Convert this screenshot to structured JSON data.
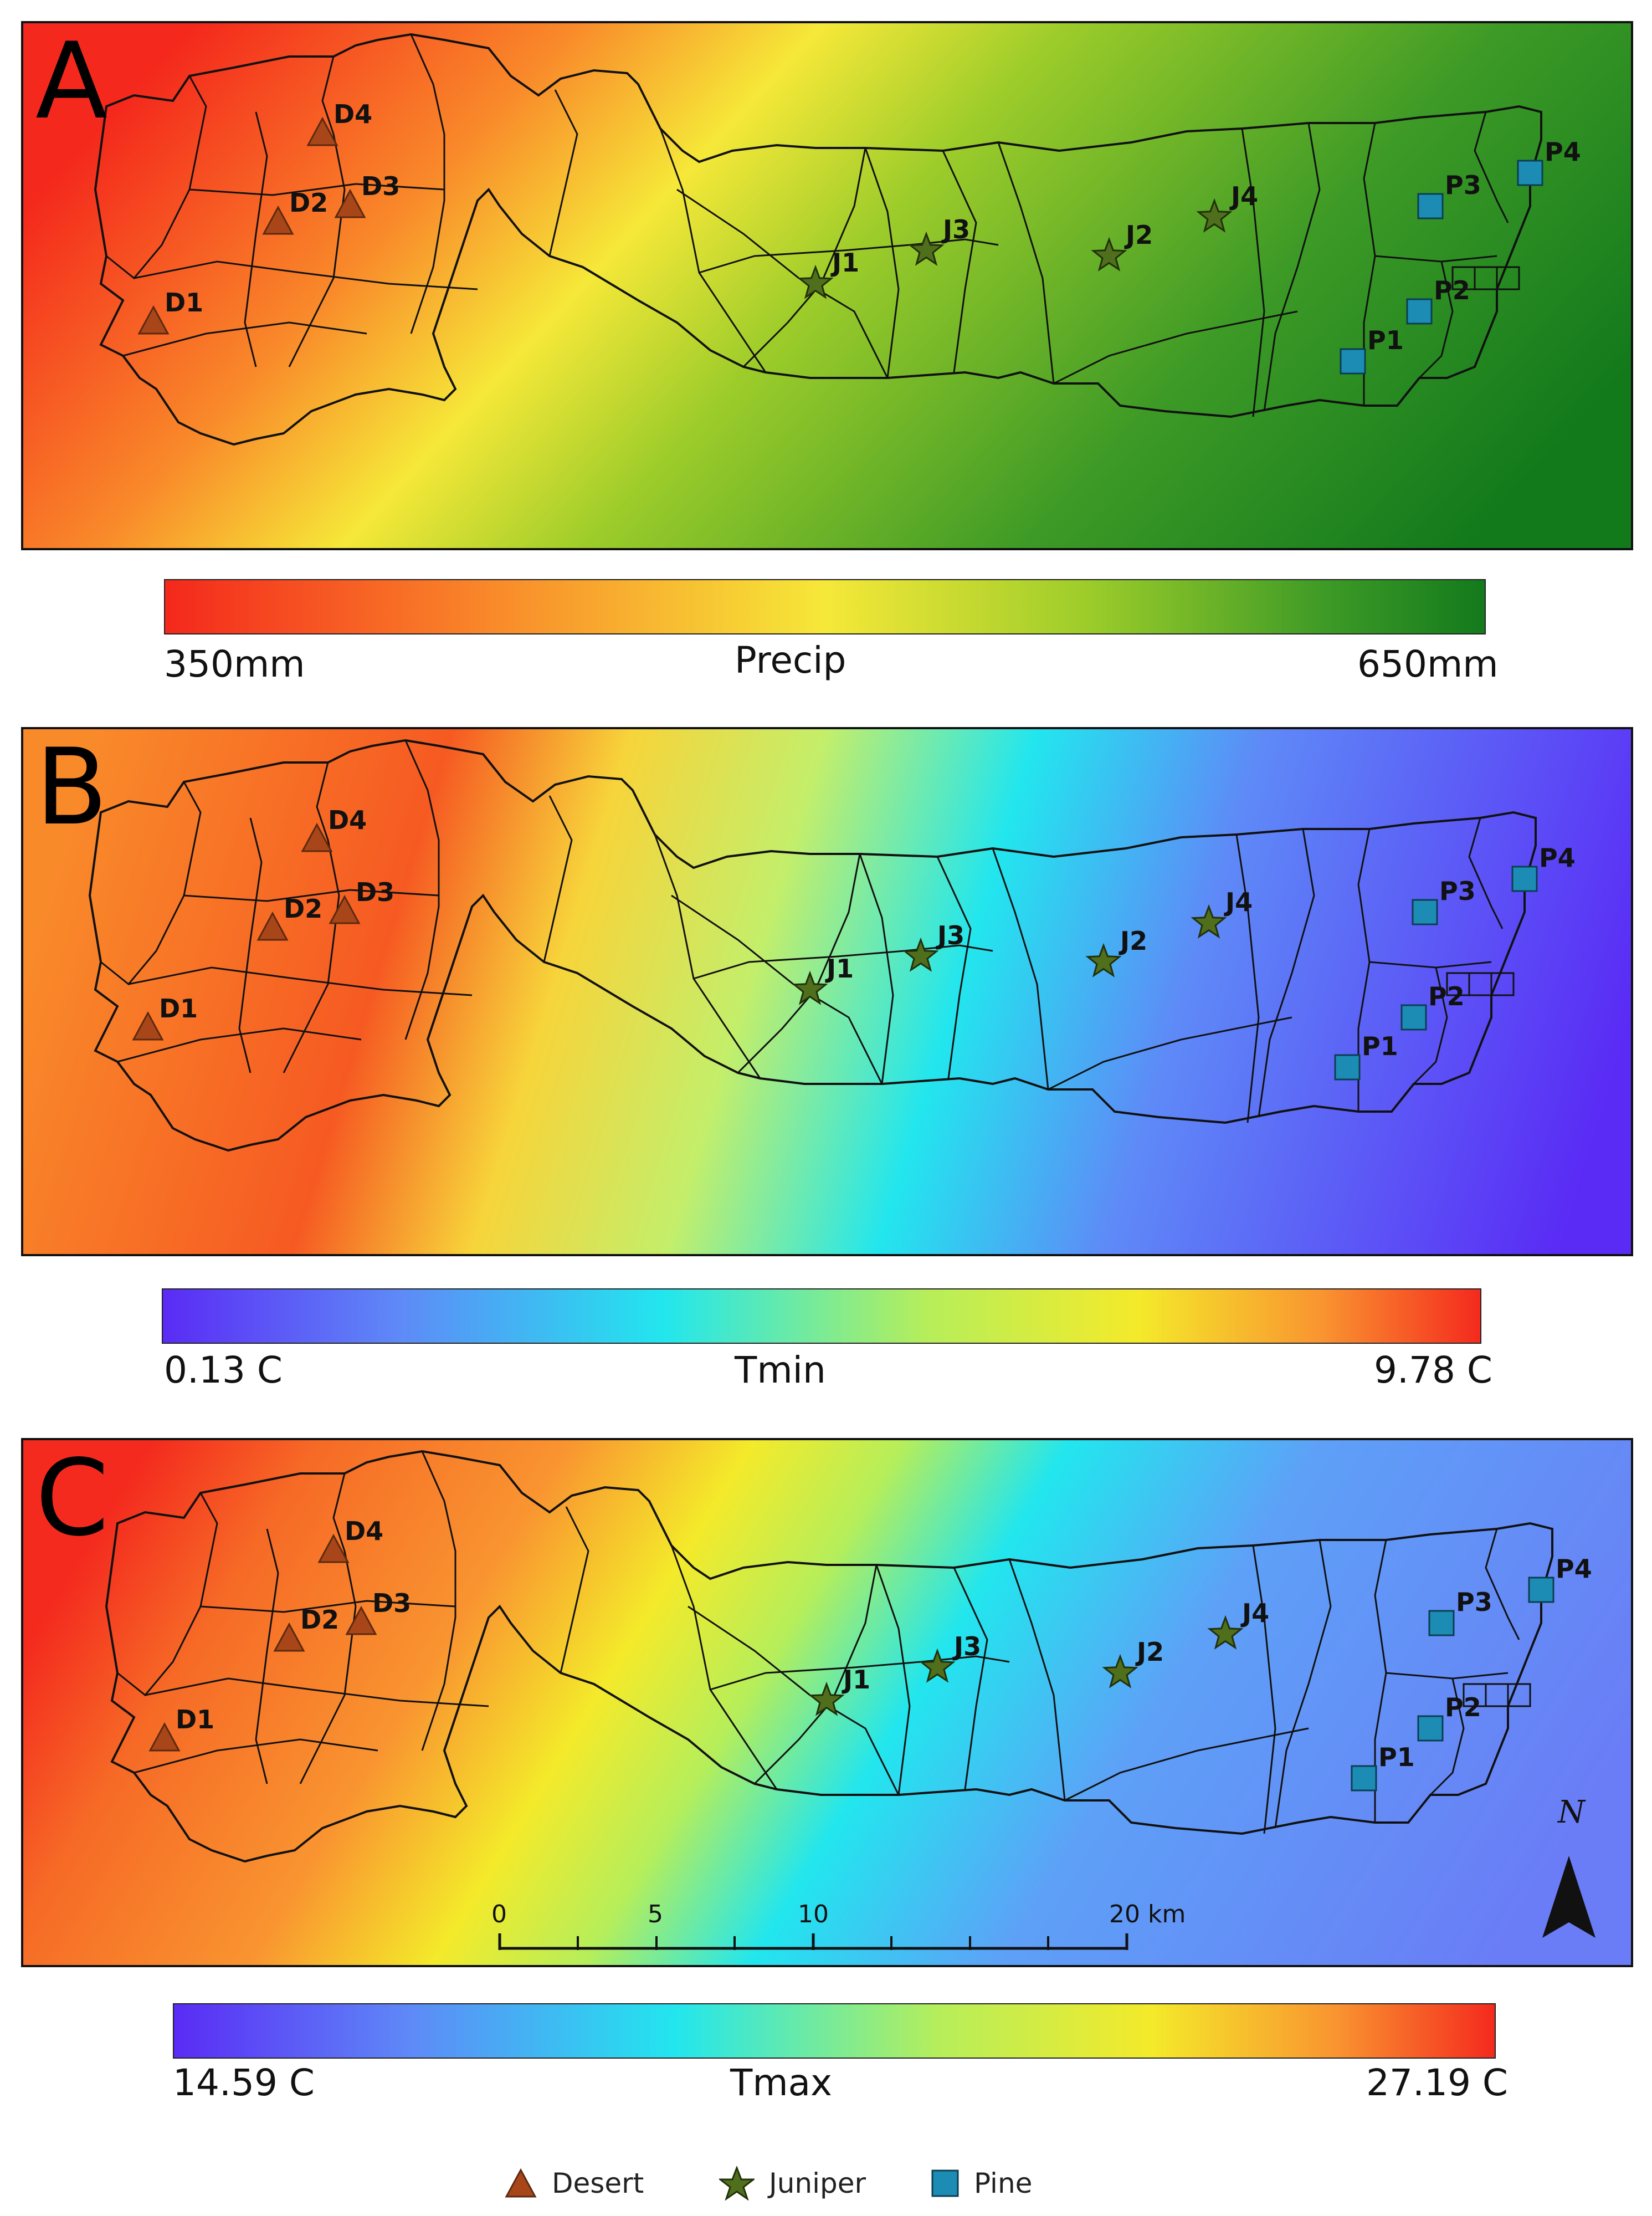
{
  "panels": [
    {
      "letter": "A",
      "variable": "Precip",
      "min_label": "350mm",
      "max_label": "650mm"
    },
    {
      "letter": "B",
      "variable": "Tmin",
      "min_label": "0.13 C",
      "max_label": "9.78 C"
    },
    {
      "letter": "C",
      "variable": "Tmax",
      "min_label": "14.59 C",
      "max_label": "27.19 C"
    }
  ],
  "colors": {
    "precip_ramp": [
      "#f4281c",
      "#f98a2a",
      "#f6e838",
      "#9ccc2a",
      "#3d9a26",
      "#137a1c"
    ],
    "temp_ramp": [
      "#5a2bf5",
      "#5e8af7",
      "#22e6ee",
      "#b6ee5a",
      "#f4ea2a",
      "#f99430",
      "#f42a1e"
    ],
    "desert": "#a8461a",
    "juniper": "#4f6f1c",
    "pine": "#1d8cb4",
    "boundary": "#111111"
  },
  "sites": {
    "desert": [
      "D1",
      "D2",
      "D3",
      "D4"
    ],
    "juniper": [
      "J1",
      "J2",
      "J3",
      "J4"
    ],
    "pine": [
      "P1",
      "P2",
      "P3",
      "P4"
    ]
  },
  "legend": {
    "desert": "Desert",
    "juniper": "Juniper",
    "pine": "Pine"
  },
  "scale_bar": {
    "ticks": [
      "0",
      "5",
      "10",
      "20 km"
    ]
  },
  "north_label": "N"
}
